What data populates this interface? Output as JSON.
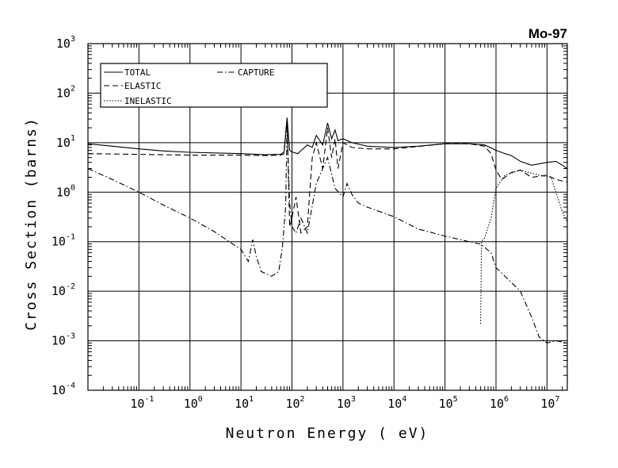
{
  "chart_data": {
    "type": "line",
    "title": "Mo-97",
    "x_label": "Neutron Energy ( eV)",
    "y_label": "Cross Section (barns)",
    "log_x": true,
    "log_y": true,
    "grid": true,
    "legend_position": "upper left",
    "xlim": [
      0.01,
      25000000
    ],
    "ylim": [
      0.0001,
      1000
    ],
    "xticks": [
      {
        "value": 0.1,
        "label": "10",
        "exponent": "-1"
      },
      {
        "value": 1,
        "label": "10",
        "exponent": "0"
      },
      {
        "value": 10,
        "label": "10",
        "exponent": "1"
      },
      {
        "value": 100,
        "label": "10",
        "exponent": "2"
      },
      {
        "value": 1000,
        "label": "10",
        "exponent": "3"
      },
      {
        "value": 10000,
        "label": "10",
        "exponent": "4"
      },
      {
        "value": 100000,
        "label": "10",
        "exponent": "5"
      },
      {
        "value": 1000000,
        "label": "10",
        "exponent": "6"
      },
      {
        "value": 10000000,
        "label": "10",
        "exponent": "7"
      }
    ],
    "yticks": [
      {
        "value": 0.0001,
        "label": "10",
        "exponent": "-4"
      },
      {
        "value": 0.001,
        "label": "10",
        "exponent": "-3"
      },
      {
        "value": 0.01,
        "label": "10",
        "exponent": "-2"
      },
      {
        "value": 0.1,
        "label": "10",
        "exponent": "-1"
      },
      {
        "value": 1,
        "label": "10",
        "exponent": "0"
      },
      {
        "value": 10,
        "label": "10",
        "exponent": "1"
      },
      {
        "value": 100,
        "label": "10",
        "exponent": "2"
      },
      {
        "value": 1000,
        "label": "10",
        "exponent": "3"
      }
    ],
    "series": [
      {
        "name": "TOTAL",
        "color": "#000000",
        "style": "solid",
        "x": [
          0.01,
          0.03,
          0.1,
          0.3,
          1,
          3,
          10,
          30,
          60,
          70,
          80,
          90,
          100,
          130,
          200,
          250,
          300,
          400,
          500,
          600,
          700,
          800,
          1000,
          1500,
          3000,
          10000,
          30000,
          100000,
          300000,
          600000,
          1000000,
          1500000,
          2000000,
          3000000,
          5000000,
          10000000,
          15000000,
          20000000,
          25000000
        ],
        "values": [
          9.5,
          8.5,
          7.5,
          6.8,
          6.4,
          6.2,
          6.0,
          5.7,
          5.8,
          6.5,
          32,
          7,
          6.5,
          6,
          9,
          8,
          14,
          9,
          25,
          12,
          18,
          11,
          12,
          10,
          8.5,
          8,
          8.5,
          9.5,
          9.5,
          9,
          7,
          6,
          5.5,
          4.2,
          3.5,
          4,
          4.2,
          3.5,
          3
        ]
      },
      {
        "name": "ELASTIC",
        "color": "#000000",
        "style": "dashed",
        "x": [
          0.01,
          0.1,
          1,
          10,
          30,
          60,
          70,
          80,
          90,
          100,
          120,
          150,
          200,
          250,
          300,
          400,
          500,
          600,
          700,
          800,
          1000,
          1500,
          3000,
          10000,
          100000,
          300000,
          600000,
          800000,
          1000000,
          1300000,
          2000000,
          3000000,
          5000000,
          10000000,
          15000000,
          25000000
        ],
        "values": [
          6,
          5.8,
          5.6,
          5.6,
          5.5,
          5.6,
          6,
          30,
          0.2,
          0.3,
          0.8,
          0.15,
          0.2,
          5,
          10,
          3,
          20,
          5,
          12,
          3,
          10,
          8,
          7.5,
          7.5,
          9.5,
          9.5,
          8.5,
          6,
          2.8,
          1.8,
          2.5,
          2.8,
          2,
          2.2,
          1.8,
          1.6
        ]
      },
      {
        "name": "INELASTIC",
        "color": "#000000",
        "style": "dotted",
        "x": [
          500000,
          520000,
          600000,
          800000,
          1000000,
          1500000,
          3000000,
          7000000,
          12000000,
          15000000,
          20000000,
          25000000
        ],
        "values": [
          0.0022,
          0.1,
          0.12,
          0.3,
          1.2,
          2.2,
          2.8,
          2.2,
          2.0,
          1.0,
          0.4,
          0.25
        ]
      },
      {
        "name": "CAPTURE",
        "color": "#000000",
        "style": "dashdot",
        "x": [
          0.01,
          0.03,
          0.1,
          0.3,
          1,
          3,
          10,
          14,
          17,
          20,
          25,
          40,
          55,
          65,
          75,
          80,
          90,
          100,
          120,
          150,
          200,
          300,
          400,
          500,
          700,
          1000,
          1200,
          1500,
          2000,
          3000,
          10000,
          30000,
          100000,
          300000,
          500000,
          800000,
          1000000,
          2000000,
          3000000,
          5000000,
          7000000,
          10000000,
          15000000,
          25000000
        ],
        "values": [
          3,
          1.8,
          1,
          0.55,
          0.3,
          0.16,
          0.07,
          0.04,
          0.11,
          0.05,
          0.025,
          0.02,
          0.025,
          0.08,
          0.5,
          20,
          0.6,
          0.2,
          0.15,
          0.3,
          0.15,
          1.5,
          3,
          5,
          1.2,
          0.8,
          1.5,
          0.9,
          0.6,
          0.5,
          0.32,
          0.18,
          0.13,
          0.1,
          0.09,
          0.06,
          0.03,
          0.015,
          0.01,
          0.003,
          0.0012,
          0.0009,
          0.001,
          0.0009
        ]
      }
    ]
  }
}
